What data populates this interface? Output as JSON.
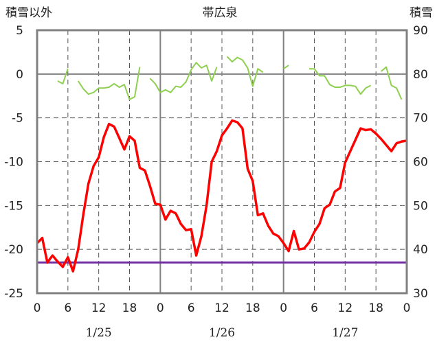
{
  "chart_data": {
    "type": "line",
    "title": "帯広泉",
    "left_axis_label": "積雪以外",
    "right_axis_label": "積雪",
    "ylim_left": [
      -25,
      5
    ],
    "left_ticks": [
      "5",
      "0",
      "-5",
      "-10",
      "-15",
      "-20",
      "-25"
    ],
    "ylim_right": [
      30,
      90
    ],
    "right_ticks": [
      "90",
      "80",
      "70",
      "60",
      "50",
      "40",
      "30"
    ],
    "x_hours_range": [
      0,
      72
    ],
    "x_tick_labels": [
      "0",
      "6",
      "12",
      "18",
      "0",
      "6",
      "12",
      "18",
      "0",
      "6",
      "12",
      "18",
      "0"
    ],
    "date_labels": [
      "1/25",
      "1/26",
      "1/27"
    ],
    "grid": true,
    "series": [
      {
        "color": "#ff0000",
        "axis": "left",
        "points": [
          [
            0,
            -19.3
          ],
          [
            1,
            -18.7
          ],
          [
            2,
            -21.5
          ],
          [
            3,
            -20.7
          ],
          [
            4,
            -21.4
          ],
          [
            5,
            -22.0
          ],
          [
            6,
            -20.9
          ],
          [
            7,
            -22.5
          ],
          [
            8,
            -20.0
          ],
          [
            9,
            -16.0
          ],
          [
            10,
            -12.5
          ],
          [
            11,
            -10.5
          ],
          [
            12,
            -9.5
          ],
          [
            13,
            -7.2
          ],
          [
            14,
            -5.7
          ],
          [
            15,
            -6.0
          ],
          [
            16,
            -7.3
          ],
          [
            17,
            -8.6
          ],
          [
            18,
            -7.1
          ],
          [
            19,
            -7.6
          ],
          [
            20,
            -10.7
          ],
          [
            21,
            -11.0
          ],
          [
            22,
            -12.8
          ],
          [
            23,
            -14.8
          ],
          [
            24,
            -14.9
          ],
          [
            25,
            -16.6
          ],
          [
            26,
            -15.6
          ],
          [
            27,
            -15.9
          ],
          [
            28,
            -17.1
          ],
          [
            29,
            -17.8
          ],
          [
            30,
            -17.7
          ],
          [
            31,
            -20.7
          ],
          [
            32,
            -18.5
          ],
          [
            33,
            -15.0
          ],
          [
            34,
            -10.0
          ],
          [
            35,
            -8.8
          ],
          [
            36,
            -7.0
          ],
          [
            37,
            -6.2
          ],
          [
            38,
            -5.3
          ],
          [
            39,
            -5.5
          ],
          [
            40,
            -6.2
          ],
          [
            41,
            -10.8
          ],
          [
            42,
            -12.2
          ],
          [
            43,
            -16.1
          ],
          [
            44,
            -15.9
          ],
          [
            45,
            -17.3
          ],
          [
            46,
            -18.2
          ],
          [
            47,
            -18.5
          ],
          [
            48,
            -19.3
          ],
          [
            49,
            -20.2
          ],
          [
            50,
            -17.9
          ],
          [
            51,
            -20.0
          ],
          [
            52,
            -19.9
          ],
          [
            53,
            -19.2
          ],
          [
            54,
            -18.0
          ],
          [
            55,
            -17.1
          ],
          [
            56,
            -15.3
          ],
          [
            57,
            -14.9
          ],
          [
            58,
            -13.4
          ],
          [
            59,
            -13.0
          ],
          [
            60,
            -10.1
          ],
          [
            61,
            -8.8
          ],
          [
            62,
            -7.5
          ],
          [
            63,
            -6.2
          ],
          [
            64,
            -6.4
          ],
          [
            65,
            -6.3
          ],
          [
            66,
            -6.8
          ],
          [
            67,
            -7.4
          ],
          [
            68,
            -8.1
          ],
          [
            69,
            -8.8
          ],
          [
            70,
            -7.9
          ],
          [
            71,
            -7.7
          ],
          [
            72,
            -7.6
          ]
        ]
      },
      {
        "color": "#8ecf4f",
        "axis": "left",
        "segments": [
          [
            [
              4,
              -0.8
            ],
            [
              5,
              -1.1
            ],
            [
              6,
              0.6
            ]
          ],
          [
            [
              8,
              -0.8
            ],
            [
              9,
              -1.7
            ],
            [
              10,
              -2.3
            ],
            [
              11,
              -2.1
            ],
            [
              12,
              -1.6
            ],
            [
              13,
              -1.6
            ],
            [
              14,
              -1.5
            ],
            [
              15,
              -1.1
            ],
            [
              16,
              -1.5
            ],
            [
              17,
              -1.2
            ],
            [
              18,
              -2.9
            ],
            [
              19,
              -2.6
            ],
            [
              20,
              0.8
            ]
          ],
          [
            [
              22,
              -0.5
            ],
            [
              23,
              -1.1
            ],
            [
              24,
              -2.1
            ],
            [
              25,
              -1.8
            ],
            [
              26,
              -2.1
            ],
            [
              27,
              -1.4
            ],
            [
              28,
              -1.5
            ],
            [
              29,
              -0.9
            ],
            [
              30,
              0.5
            ],
            [
              31,
              1.3
            ],
            [
              32,
              0.7
            ],
            [
              33,
              1.0
            ],
            [
              34,
              -0.8
            ],
            [
              35,
              0.8
            ]
          ],
          [
            [
              37,
              2.0
            ],
            [
              38,
              1.4
            ],
            [
              39,
              1.9
            ],
            [
              40,
              1.6
            ],
            [
              41,
              0.7
            ],
            [
              42,
              -1.4
            ],
            [
              43,
              0.6
            ],
            [
              44,
              0.2
            ]
          ],
          [
            [
              48,
              0.6
            ],
            [
              49,
              1.0
            ]
          ],
          [
            [
              53,
              0.6
            ],
            [
              54,
              0.6
            ],
            [
              55,
              -0.2
            ],
            [
              56,
              -0.2
            ],
            [
              57,
              -1.2
            ],
            [
              58,
              -1.5
            ],
            [
              59,
              -1.5
            ],
            [
              60,
              -1.3
            ],
            [
              61,
              -1.3
            ],
            [
              62,
              -1.4
            ],
            [
              63,
              -2.3
            ],
            [
              64,
              -1.6
            ],
            [
              65,
              -1.3
            ]
          ],
          [
            [
              67,
              0.3
            ],
            [
              68,
              0.8
            ],
            [
              69,
              -1.3
            ],
            [
              70,
              -1.6
            ],
            [
              71,
              -2.9
            ]
          ]
        ]
      },
      {
        "color": "#7030a0",
        "axis": "left",
        "points": [
          [
            0,
            -21.5
          ],
          [
            72,
            -21.5
          ]
        ]
      }
    ]
  }
}
